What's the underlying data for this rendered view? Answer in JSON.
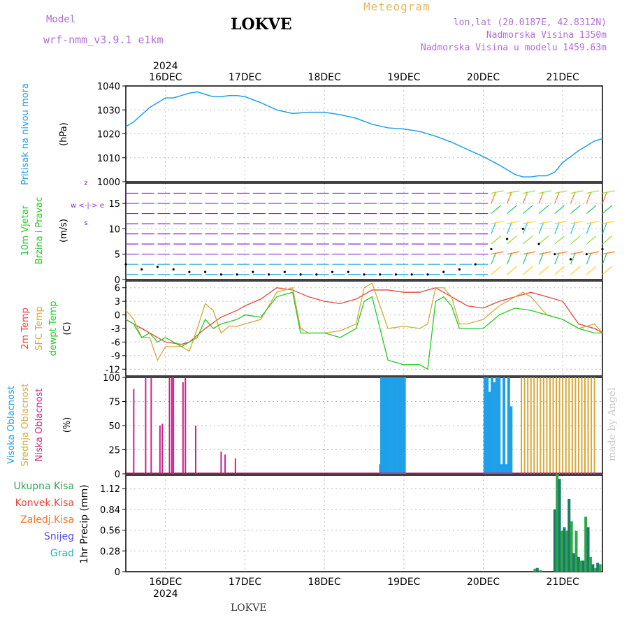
{
  "header": {
    "model_label": "Model",
    "model_name": "wrf-nmm_v3.9.1  e1km",
    "title": "LOKVE",
    "meteogram": "Meteogram",
    "coords": "lon,lat (20.0187E, 42.8312N)",
    "altitude": "Nadmorska Visina 1350m",
    "model_altitude": "Nadmorska Visina u modelu 1459.63m",
    "footer": "LOKVE",
    "made_by": "made by Angel"
  },
  "colors": {
    "pressure": "#1fa0e8",
    "temp": "#e8463c",
    "sfc_temp": "#d8a838",
    "dewpt": "#22cc22",
    "high_cloud": "#1fa0e8",
    "mid_cloud": "#d8a838",
    "low_cloud": "#c8238e",
    "precip_total": "#2ea84a",
    "precip_conv": "#e8463c",
    "precip_frz": "#f07830",
    "precip_snow": "#5050e8",
    "precip_graup": "#20b0a8",
    "wind_purple": "#8a2be2"
  },
  "chart_data": [
    {
      "type": "line",
      "title": "Pritisak na nivou mora",
      "ylabel": "(hPa)",
      "ylim": [
        1000,
        1040
      ],
      "yticks": [
        "1040",
        "1030",
        "1020",
        "1010",
        "1000"
      ],
      "xlim": [
        15.5,
        21.5
      ],
      "x_top_year": "2024",
      "x_top_labels": [
        "16DEC",
        "17DEC",
        "18DEC",
        "19DEC",
        "20DEC",
        "21DEC"
      ],
      "x_bottom_labels": [
        "16DEC",
        "17DEC",
        "18DEC",
        "19DEC",
        "20DEC",
        "21DEC"
      ],
      "x_bottom_year": "2024",
      "grid": true,
      "series": [
        {
          "x": [
            15.5,
            15.6,
            15.7,
            15.8,
            15.9,
            16.0,
            16.1,
            16.2,
            16.3,
            16.4,
            16.5,
            16.6,
            16.7,
            16.8,
            16.9,
            17.0,
            17.2,
            17.4,
            17.6,
            17.8,
            18.0,
            18.2,
            18.4,
            18.6,
            18.8,
            19.0,
            19.2,
            19.4,
            19.6,
            19.8,
            20.0,
            20.2,
            20.3,
            20.4,
            20.5,
            20.6,
            20.7,
            20.8,
            20.9,
            21.0,
            21.1,
            21.2,
            21.3,
            21.4,
            21.5
          ],
          "values": [
            1023,
            1025,
            1028,
            1031,
            1033,
            1035,
            1035,
            1036,
            1037,
            1037.5,
            1036.5,
            1035.5,
            1035.5,
            1036,
            1036,
            1035.5,
            1033,
            1030,
            1028.5,
            1029,
            1029,
            1028,
            1026.5,
            1024,
            1022.5,
            1022,
            1021,
            1019,
            1016.5,
            1013.5,
            1010.5,
            1007,
            1005,
            1003,
            1002,
            1002,
            1002.5,
            1002.5,
            1004,
            1008,
            1010.5,
            1013,
            1015,
            1017,
            1018
          ]
        }
      ]
    },
    {
      "type": "scatter",
      "title": "10m Vjetar Brzina i Pravac",
      "ylabel": "(m/s)",
      "ylim": [
        0,
        19
      ],
      "yticks": [
        "15",
        "10",
        "5",
        "0"
      ],
      "direction_legend": [
        "z",
        "w <-|-> e",
        "s"
      ],
      "series": [
        {
          "name": "wind speed",
          "x": [
            15.5,
            15.7,
            15.9,
            16.1,
            16.3,
            16.5,
            16.7,
            16.9,
            17.1,
            17.3,
            17.5,
            17.7,
            17.9,
            18.1,
            18.3,
            18.5,
            18.7,
            18.9,
            19.1,
            19.3,
            19.5,
            19.7,
            19.9,
            20.1,
            20.3,
            20.5,
            20.7,
            20.9,
            21.1,
            21.3,
            21.5
          ],
          "values": [
            3,
            2,
            2.5,
            2,
            1.5,
            1.5,
            1,
            1,
            1.5,
            1,
            1.5,
            1,
            1,
            1.5,
            1.5,
            1,
            1,
            1,
            1,
            1,
            1.5,
            2,
            3,
            6,
            8,
            10,
            7,
            5,
            4,
            5,
            6
          ]
        }
      ]
    },
    {
      "type": "line",
      "title": "2m Temp / SFC Temp / dewpt Temp",
      "ylabel": "(C)",
      "ylim": [
        -13.5,
        7.5
      ],
      "yticks": [
        "6",
        "3",
        "0",
        "-3",
        "-6",
        "-9",
        "-12"
      ],
      "series": [
        {
          "name": "2m Temp",
          "x": [
            15.5,
            15.7,
            15.9,
            16.0,
            16.2,
            16.3,
            16.5,
            16.7,
            16.9,
            17.0,
            17.2,
            17.4,
            17.6,
            17.8,
            18.0,
            18.2,
            18.4,
            18.6,
            18.8,
            19.0,
            19.2,
            19.4,
            19.6,
            19.8,
            20.0,
            20.2,
            20.4,
            20.6,
            20.8,
            21.0,
            21.2,
            21.4,
            21.5
          ],
          "values": [
            -1,
            -3,
            -5,
            -6,
            -6.5,
            -6,
            -3,
            -0.5,
            1,
            2,
            3.5,
            6,
            5.5,
            4,
            3,
            2.5,
            3.5,
            5.5,
            5.5,
            5,
            5,
            6,
            4,
            2,
            1.5,
            3,
            4,
            5,
            4,
            3,
            -2,
            -3,
            -4
          ]
        },
        {
          "name": "SFC Temp",
          "x": [
            15.5,
            15.6,
            15.7,
            15.8,
            15.9,
            16.0,
            16.2,
            16.3,
            16.4,
            16.5,
            16.6,
            16.7,
            16.8,
            16.9,
            17.0,
            17.2,
            17.4,
            17.6,
            17.7,
            17.8,
            18.0,
            18.2,
            18.4,
            18.5,
            18.6,
            18.7,
            18.8,
            19.0,
            19.2,
            19.3,
            19.4,
            19.5,
            19.6,
            19.7,
            19.8,
            20.0,
            20.2,
            20.4,
            20.5,
            20.6,
            20.7,
            20.8,
            21.0,
            21.2,
            21.4,
            21.5
          ],
          "values": [
            1,
            -1,
            -5,
            -5,
            -10,
            -7,
            -7,
            -8,
            -3,
            2.5,
            1,
            -4,
            -2.5,
            -2.5,
            -2,
            -1,
            5,
            6,
            -3,
            -4,
            -4,
            -3.5,
            -2,
            6,
            7,
            2,
            -3,
            -2.5,
            -3,
            -2,
            6,
            6,
            4,
            -2,
            -2,
            -1,
            2,
            4,
            5,
            4,
            2,
            0,
            -1,
            -3,
            -2,
            -4
          ]
        },
        {
          "name": "dewpt Temp",
          "x": [
            15.5,
            15.6,
            15.7,
            15.8,
            15.9,
            16.0,
            16.2,
            16.3,
            16.4,
            16.5,
            16.6,
            16.7,
            16.9,
            17.0,
            17.2,
            17.4,
            17.5,
            17.6,
            17.7,
            17.8,
            18.0,
            18.2,
            18.4,
            18.5,
            18.6,
            18.7,
            18.8,
            19.0,
            19.2,
            19.3,
            19.4,
            19.5,
            19.6,
            19.7,
            19.8,
            20.0,
            20.2,
            20.4,
            20.6,
            20.8,
            21.0,
            21.2,
            21.4,
            21.5
          ],
          "values": [
            -1,
            -2,
            -5,
            -4,
            -6,
            -5,
            -7,
            -6,
            -5,
            -1,
            -3,
            -2,
            -1,
            0,
            -0.5,
            4,
            4.5,
            5,
            -4,
            -4,
            -4,
            -5,
            -3,
            3,
            4,
            -3,
            -10,
            -11,
            -11,
            -12,
            3,
            4,
            2,
            -3,
            -3,
            -3,
            0,
            1.5,
            1,
            0,
            -1,
            -3,
            -4,
            -4
          ]
        }
      ]
    },
    {
      "type": "bar",
      "title": "Visoka / Srednja / Niska Oblacnost",
      "ylabel": "(%)",
      "ylim": [
        0,
        100
      ],
      "yticks": [
        "100",
        "75",
        "50",
        "25",
        "0"
      ],
      "series": [
        {
          "name": "Niska Oblacnost",
          "x": [
            15.6,
            15.75,
            15.82,
            15.93,
            15.96,
            16.05,
            16.08,
            16.1,
            16.22,
            16.25,
            16.38,
            16.7,
            16.75,
            16.88,
            18.7
          ],
          "values": [
            88,
            100,
            100,
            50,
            52,
            100,
            100,
            100,
            95,
            100,
            50,
            23,
            20,
            16,
            10
          ]
        },
        {
          "name": "Srednja Oblacnost",
          "x": [
            18.72,
            18.74,
            18.76,
            18.78,
            18.8,
            18.82,
            18.84,
            18.86,
            18.88,
            18.9,
            18.92,
            18.94,
            18.96,
            18.98,
            19.0,
            19.02,
            20.48,
            20.52,
            20.56,
            20.6,
            20.64,
            20.68,
            20.72,
            20.76,
            20.8,
            20.84,
            20.88,
            20.92,
            20.96,
            21.0,
            21.04,
            21.08,
            21.12,
            21.16,
            21.2,
            21.24,
            21.28,
            21.32,
            21.36,
            21.4
          ],
          "values": [
            0,
            28,
            100,
            100,
            100,
            100,
            100,
            100,
            100,
            100,
            100,
            100,
            100,
            100,
            100,
            100,
            100,
            100,
            100,
            100,
            100,
            100,
            100,
            100,
            100,
            100,
            100,
            100,
            100,
            100,
            100,
            100,
            100,
            100,
            100,
            100,
            100,
            100,
            100,
            100
          ]
        },
        {
          "name": "Visoka Oblacnost",
          "x": [
            18.72,
            18.74,
            18.76,
            18.78,
            18.8,
            18.82,
            18.84,
            18.86,
            18.88,
            18.9,
            18.92,
            18.94,
            18.96,
            18.98,
            19.0,
            20.02,
            20.05,
            20.08,
            20.11,
            20.14,
            20.17,
            20.2,
            20.23,
            20.26,
            20.29,
            20.32,
            20.35,
            20.38
          ],
          "values": [
            100,
            100,
            100,
            100,
            100,
            100,
            100,
            100,
            100,
            100,
            100,
            100,
            100,
            100,
            100,
            100,
            100,
            85,
            100,
            95,
            100,
            100,
            10,
            100,
            10,
            100,
            70,
            0
          ]
        }
      ]
    },
    {
      "type": "bar",
      "title": "Ukupna Kisa / Konvek.Kisa / Zaledj.Kisa / Snijeg / Grad",
      "ylabel": "1hr Precip (mm)",
      "ylim": [
        0,
        1.3
      ],
      "yticks": [
        "1.12",
        "0.84",
        "0.56",
        "0.28",
        "0"
      ],
      "legend": [
        "Ukupna Kisa",
        "Konvek.Kisa",
        "Zaledj.Kisa",
        "Snijeg",
        "Grad"
      ],
      "series": [
        {
          "name": "Ukupna Kisa",
          "x": [
            20.65,
            20.68,
            20.72,
            20.9,
            20.93,
            20.96,
            20.99,
            21.02,
            21.05,
            21.08,
            21.11,
            21.14,
            21.17,
            21.2,
            21.23,
            21.26,
            21.29,
            21.32,
            21.35,
            21.38,
            21.41,
            21.44,
            21.47
          ],
          "values": [
            0.04,
            0.05,
            0.02,
            0.84,
            1.32,
            1.25,
            0.55,
            0.6,
            0.55,
            0.98,
            0.68,
            0.25,
            0.55,
            0.2,
            0.15,
            0.15,
            0.74,
            0.6,
            0.2,
            0.1,
            0.05,
            0.12,
            0.1
          ]
        }
      ]
    }
  ]
}
